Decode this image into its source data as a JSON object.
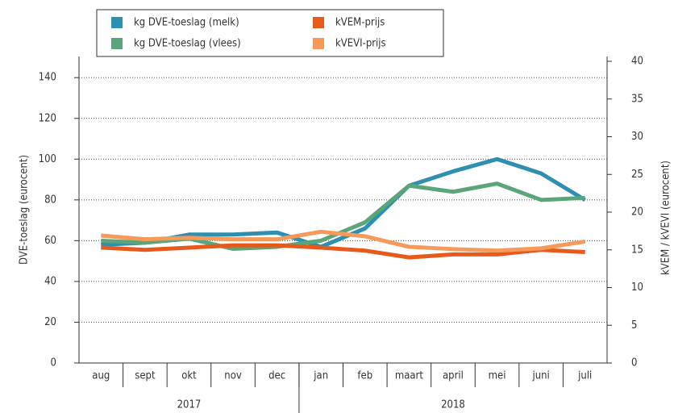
{
  "chart_data": {
    "type": "line",
    "categories": [
      "aug",
      "sept",
      "okt",
      "nov",
      "dec",
      "jan",
      "feb",
      "maart",
      "april",
      "mei",
      "juni",
      "juli"
    ],
    "year_groups": [
      {
        "label": "2017",
        "count": 5
      },
      {
        "label": "2018",
        "count": 7
      }
    ],
    "series": [
      {
        "name": "kg  DVE-toeslag (melk)",
        "color": "#2e8fb0",
        "axis": "y",
        "values": [
          58,
          59,
          63,
          63,
          64,
          57,
          66,
          87,
          94,
          100,
          93,
          80
        ]
      },
      {
        "name": "kg  DVE-toeslag (vlees)",
        "color": "#5aa57a",
        "axis": "y",
        "values": [
          60,
          59,
          61,
          56,
          57,
          60,
          69,
          87,
          84,
          88,
          80,
          81
        ]
      },
      {
        "name": "kVEM-prijs",
        "color": "#e8591c",
        "axis": "y2",
        "values": [
          15.3,
          15,
          15.3,
          15.6,
          15.6,
          15.3,
          14.9,
          14,
          14.4,
          14.4,
          15,
          14.7
        ]
      },
      {
        "name": "kVEVI-prijs",
        "color": "#f59a5a",
        "axis": "y2",
        "values": [
          16.9,
          16.4,
          16.6,
          16.4,
          16.4,
          17.4,
          16.8,
          15.4,
          15.1,
          14.9,
          15.2,
          16.1
        ]
      }
    ],
    "ylabel": "DVE-toeslag (eurocent)",
    "y2label": "kVEM / kVEVI (eurocent)",
    "ylim": [
      0,
      148
    ],
    "yticks": [
      0,
      20,
      40,
      60,
      80,
      100,
      120,
      140
    ],
    "y2lim": [
      0,
      40
    ],
    "y2ticks": [
      0,
      5,
      10,
      15,
      20,
      25,
      30,
      35,
      40
    ],
    "grid": true,
    "legend": "top"
  }
}
